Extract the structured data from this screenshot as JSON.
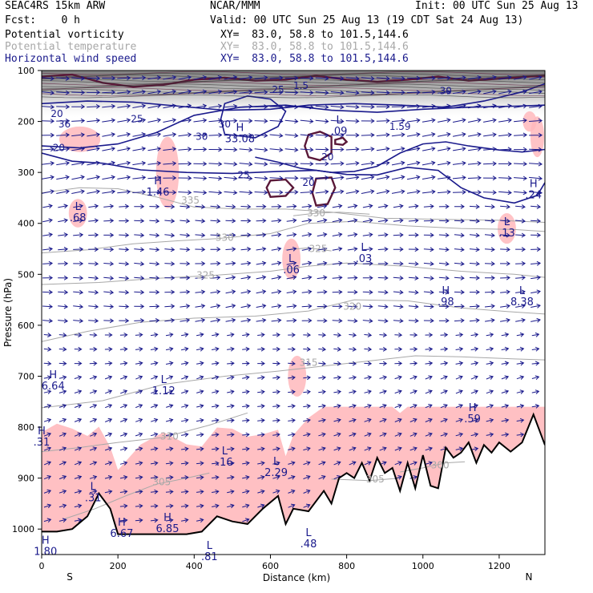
{
  "header": {
    "model": "SEAC4RS 15km ARW",
    "org": "NCAR/MMM",
    "init": "Init: 00 UTC Sun 25 Aug 13",
    "fcst": "Fcst:    0 h",
    "valid": "Valid: 00 UTC Sun 25 Aug 13 (19 CDT Sat 24 Aug 13)"
  },
  "fields": [
    {
      "name": "Potential vorticity",
      "xy": "XY=  83.0, 58.8 to 101.5,144.6",
      "color": "#000000"
    },
    {
      "name": "Potential temperature",
      "xy": "XY=  83.0, 58.8 to 101.5,144.6",
      "color": "#a8a8a8"
    },
    {
      "name": "Horizontal wind speed",
      "xy": "XY=  83.0, 58.8 to 101.5,144.6",
      "color": "#1a1a8c"
    }
  ],
  "chart_data": {
    "type": "cross-section",
    "xlabel": "Distance (km)",
    "ylabel": "Pressure (hPa)",
    "xlim": [
      0,
      1320
    ],
    "ylim": [
      1050,
      100
    ],
    "x_ticks": [
      0,
      200,
      400,
      600,
      800,
      1000,
      1200
    ],
    "y_ticks": [
      100,
      200,
      300,
      400,
      500,
      600,
      700,
      800,
      900,
      1000
    ],
    "x_end_labels": {
      "left": "S",
      "right": "N"
    },
    "theta_contours": [
      {
        "label": "335",
        "x": [
          0,
          100,
          200,
          300,
          400,
          520,
          640,
          760,
          900,
          1050,
          1200,
          1320
        ],
        "p": [
          340,
          330,
          332,
          348,
          368,
          372,
          372,
          378,
          390,
          392,
          394,
          398
        ],
        "label_x": 390,
        "label_p": 355
      },
      {
        "label": "330",
        "x": [
          0,
          120,
          240,
          360,
          460,
          600,
          700,
          820,
          960,
          1100,
          1240,
          1320
        ],
        "p": [
          458,
          452,
          440,
          434,
          430,
          420,
          400,
          396,
          405,
          410,
          412,
          416
        ],
        "label_x": 480,
        "label_p": 428
      },
      {
        "label": "330",
        "x": [
          660,
          720,
          780,
          860
        ],
        "p": [
          385,
          380,
          378,
          382
        ],
        "label_x": 720,
        "label_p": 380
      },
      {
        "label": "325",
        "x": [
          0,
          150,
          300,
          450,
          600,
          700,
          800,
          950,
          1100,
          1240,
          1320
        ],
        "p": [
          520,
          516,
          508,
          502,
          494,
          484,
          478,
          484,
          494,
          500,
          506
        ],
        "label_x": 430,
        "label_p": 502
      },
      {
        "label": "325",
        "x": [
          640,
          700,
          760
        ],
        "p": [
          452,
          448,
          454
        ],
        "label_x": 725,
        "label_p": 450
      },
      {
        "label": "320",
        "x": [
          0,
          120,
          260,
          400,
          560,
          700,
          820,
          960,
          1100,
          1240,
          1320
        ],
        "p": [
          632,
          612,
          594,
          586,
          582,
          572,
          550,
          552,
          566,
          574,
          578
        ],
        "label_x": 815,
        "label_p": 563
      },
      {
        "label": "315",
        "x": [
          0,
          160,
          320,
          480,
          620,
          740,
          860,
          980,
          1100,
          1240,
          1320
        ],
        "p": [
          762,
          748,
          716,
          700,
          690,
          680,
          670,
          660,
          662,
          666,
          668
        ],
        "label_x": 700,
        "label_p": 673
      },
      {
        "label": "310",
        "x": [
          0,
          100,
          200,
          320,
          440,
          540
        ],
        "p": [
          848,
          840,
          830,
          820,
          796,
          772
        ],
        "label_x": 335,
        "label_p": 818
      },
      {
        "label": "305",
        "x": [
          60,
          140,
          220,
          300,
          380,
          440
        ],
        "p": [
          980,
          960,
          935,
          912,
          900,
          890
        ],
        "label_x": 315,
        "label_p": 908
      },
      {
        "label": "305",
        "x": [
          760,
          860,
          940
        ],
        "p": [
          902,
          905,
          900
        ],
        "label_x": 875,
        "label_p": 902
      },
      {
        "label": "300",
        "x": [
          940,
          1000,
          1060,
          1110
        ],
        "p": [
          888,
          880,
          870,
          868
        ],
        "label_x": 1045,
        "label_p": 875
      }
    ],
    "wind_contours": [
      {
        "label": "25",
        "x": [
          0,
          100,
          200,
          300,
          400,
          520,
          640,
          760,
          880,
          1000,
          1120,
          1240,
          1320
        ],
        "p": [
          248,
          252,
          244,
          222,
          188,
          172,
          168,
          178,
          182,
          176,
          172,
          170,
          168
        ]
      },
      {
        "label": "25",
        "x": [
          0,
          120,
          240,
          360,
          480,
          600,
          700,
          820,
          940,
          1060,
          1160,
          1260,
          1320
        ],
        "p": [
          165,
          160,
          162,
          170,
          178,
          176,
          168,
          165,
          168,
          172,
          160,
          142,
          126
        ]
      },
      {
        "label": "20",
        "x": [
          0,
          80,
          160,
          260,
          380,
          500,
          620,
          720,
          800,
          880,
          960,
          1040,
          1100,
          1160,
          1240,
          1300,
          1320
        ],
        "p": [
          262,
          278,
          282,
          295,
          300,
          302,
          298,
          296,
          304,
          305,
          290,
          296,
          330,
          350,
          360,
          345,
          320
        ]
      },
      {
        "label": "20",
        "x": [
          560,
          620,
          680,
          720,
          760,
          820,
          880,
          940,
          1000,
          1060,
          1120,
          1200,
          1260,
          1320
        ],
        "p": [
          270,
          280,
          292,
          296,
          300,
          298,
          288,
          262,
          244,
          240,
          248,
          256,
          260,
          255
        ]
      },
      {
        "label": "30",
        "x": [
          480,
          560,
          620,
          640,
          600,
          540,
          480,
          470,
          480
        ],
        "p": [
          225,
          232,
          210,
          180,
          156,
          150,
          165,
          195,
          225
        ]
      }
    ],
    "pv_contours": [
      {
        "x": [
          700,
          730,
          760,
          760,
          730,
          700,
          690,
          700
        ],
        "p": [
          226,
          220,
          230,
          262,
          276,
          270,
          248,
          226
        ]
      },
      {
        "x": [
          600,
          640,
          660,
          640,
          600,
          590,
          600
        ],
        "p": [
          316,
          314,
          330,
          346,
          348,
          330,
          316
        ]
      },
      {
        "x": [
          720,
          760,
          770,
          750,
          720,
          710,
          720
        ],
        "p": [
          312,
          310,
          330,
          362,
          365,
          340,
          312
        ]
      },
      {
        "x": [
          770,
          790,
          800,
          790,
          770,
          770
        ],
        "p": [
          236,
          232,
          240,
          246,
          244,
          236
        ]
      }
    ],
    "pv_high_band": {
      "x": [
        0,
        80,
        160,
        240,
        320,
        400,
        480,
        560,
        640,
        720,
        800,
        880,
        960,
        1040,
        1120,
        1200,
        1280,
        1320
      ],
      "p": [
        112,
        108,
        124,
        132,
        128,
        118,
        114,
        120,
        118,
        110,
        118,
        122,
        118,
        112,
        120,
        116,
        112,
        110
      ]
    },
    "highs_lows": [
      {
        "type": "L",
        "value": ".68",
        "x": 95,
        "p": 380
      },
      {
        "type": "H",
        "value": "1.46",
        "x": 305,
        "p": 330
      },
      {
        "type": "H",
        "value": "33.08",
        "x": 520,
        "p": 225
      },
      {
        "type": "L",
        "value": ".09",
        "x": 780,
        "p": 210
      },
      {
        "type": "L",
        "value": ".03",
        "x": 845,
        "p": 460
      },
      {
        "type": "L",
        "value": ".06",
        "x": 655,
        "p": 482
      },
      {
        "type": "H",
        "value": ".98",
        "x": 1060,
        "p": 545
      },
      {
        "type": "L",
        "value": "8.38",
        "x": 1260,
        "p": 545
      },
      {
        "type": "L",
        "value": ".13",
        "x": 1220,
        "p": 410
      },
      {
        "type": "H",
        "value": ".24",
        "x": 1290,
        "p": 335
      },
      {
        "type": "H",
        "value": "6.64",
        "x": 30,
        "p": 710
      },
      {
        "type": "L",
        "value": "1.12",
        "x": 320,
        "p": 720
      },
      {
        "type": "H",
        "value": ".59",
        "x": 1130,
        "p": 775
      },
      {
        "type": "L",
        "value": ".16",
        "x": 480,
        "p": 860
      },
      {
        "type": "L",
        "value": "2.29",
        "x": 615,
        "p": 880
      },
      {
        "type": "L",
        "value": ".31",
        "x": 135,
        "p": 930
      },
      {
        "type": "H",
        "value": "6.67",
        "x": 210,
        "p": 1000
      },
      {
        "type": "H",
        "value": "6.85",
        "x": 330,
        "p": 990
      },
      {
        "type": "L",
        "value": ".81",
        "x": 440,
        "p": 1045
      },
      {
        "type": "L",
        "value": ".48",
        "x": 700,
        "p": 1020
      },
      {
        "type": "H",
        "value": "1.80",
        "x": 10,
        "p": 1035
      },
      {
        "type": "H",
        "value": ".31",
        "x": 0,
        "p": 820
      }
    ],
    "contour_labels": [
      {
        "text": "20",
        "x": 40,
        "p": 185
      },
      {
        "text": "36",
        "x": 60,
        "p": 205
      },
      {
        "text": "20",
        "x": 45,
        "p": 252
      },
      {
        "text": "25",
        "x": 250,
        "p": 195
      },
      {
        "text": "30",
        "x": 420,
        "p": 230
      },
      {
        "text": "25",
        "x": 530,
        "p": 305
      },
      {
        "text": "20",
        "x": 700,
        "p": 320
      },
      {
        "text": "25",
        "x": 620,
        "p": 138
      },
      {
        "text": "1.5",
        "x": 680,
        "p": 130
      },
      {
        "text": "20",
        "x": 750,
        "p": 270
      },
      {
        "text": "1.59",
        "x": 940,
        "p": 210
      },
      {
        "text": "30",
        "x": 1060,
        "p": 140
      },
      {
        "text": "30",
        "x": 480,
        "p": 205
      }
    ],
    "colors": {
      "pv_shade": "#ffb9bc",
      "pv_contour": "#5a1838",
      "theta": "#a8a8a8",
      "wind": "#1a1a8c",
      "terrain": "#000000"
    },
    "terrain": {
      "x": [
        0,
        40,
        80,
        120,
        150,
        180,
        200,
        260,
        320,
        380,
        420,
        460,
        500,
        540,
        580,
        620,
        640,
        660,
        700,
        740,
        760,
        780,
        800,
        820,
        840,
        860,
        880,
        900,
        920,
        940,
        960,
        980,
        1000,
        1020,
        1040,
        1060,
        1080,
        1100,
        1120,
        1140,
        1160,
        1180,
        1200,
        1230,
        1260,
        1290,
        1320
      ],
      "p": [
        1005,
        1005,
        1000,
        975,
        930,
        960,
        1010,
        1010,
        1010,
        1010,
        1005,
        975,
        985,
        990,
        960,
        935,
        990,
        960,
        965,
        925,
        950,
        900,
        890,
        900,
        870,
        905,
        860,
        890,
        880,
        925,
        870,
        920,
        855,
        915,
        920,
        840,
        860,
        850,
        830,
        870,
        835,
        850,
        830,
        848,
        830,
        775,
        835
      ]
    }
  }
}
